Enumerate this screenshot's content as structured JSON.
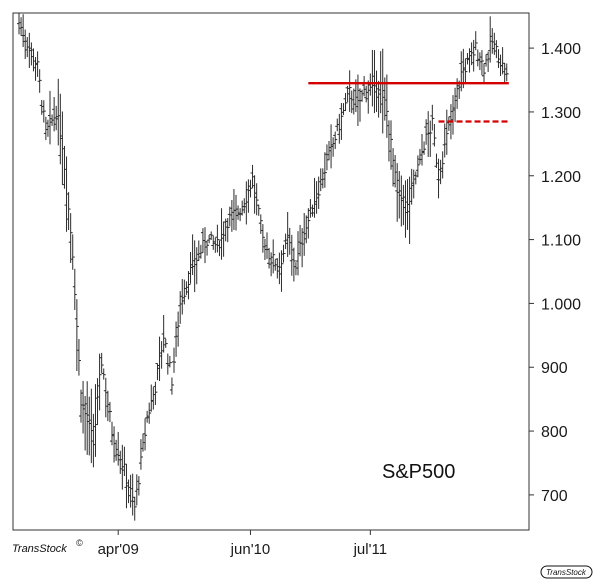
{
  "chart_data": {
    "type": "line",
    "style": "ohlc-bars",
    "annotation": "S&P500",
    "xlabel": "",
    "ylabel": "",
    "x_tick_labels": [
      "apr'09",
      "jun'10",
      "jul'11"
    ],
    "y_ticks": [
      700,
      800,
      900,
      1000,
      1100,
      1200,
      1300,
      1400
    ],
    "y_tick_labels": [
      "700",
      "800",
      "900",
      "1.000",
      "1.100",
      "1.200",
      "1.300",
      "1.400"
    ],
    "ylim": [
      645,
      1455
    ],
    "x_period_index": [
      0,
      9,
      13,
      18,
      21,
      26,
      30,
      36,
      40,
      45,
      50,
      56,
      62,
      66,
      70,
      74,
      78,
      83,
      86,
      91,
      96,
      101,
      108,
      113,
      118,
      122,
      126,
      130,
      134,
      137,
      142,
      147,
      152,
      155,
      160,
      164,
      168,
      172,
      175,
      178,
      183,
      188,
      192,
      196,
      200,
      203,
      207,
      210,
      214,
      218,
      221,
      225,
      229,
      233,
      236
    ],
    "x_tick_positions": [
      48,
      112,
      170
    ],
    "close_values": [
      1440,
      1370,
      1265,
      1300,
      1250,
      1080,
      850,
      780,
      910,
      800,
      750,
      680,
      820,
      870,
      950,
      880,
      1000,
      1050,
      1070,
      1100,
      1090,
      1130,
      1150,
      1195,
      1100,
      1070,
      1060,
      1100,
      1060,
      1100,
      1150,
      1200,
      1250,
      1280,
      1330,
      1310,
      1340,
      1330,
      1340,
      1300,
      1170,
      1150,
      1200,
      1250,
      1280,
      1200,
      1260,
      1300,
      1360,
      1380,
      1400,
      1370,
      1410,
      1380,
      1355
    ],
    "grid": false,
    "legend": "none",
    "resistance_line": {
      "value": 1345,
      "style": "solid",
      "color": "#d40000"
    },
    "support_line": {
      "value": 1285,
      "style": "dashed",
      "color": "#d40000"
    },
    "bar_color": "#2a2a2a"
  },
  "branding": {
    "name": "TransStock",
    "mark": "©",
    "badge": "TransStock"
  }
}
